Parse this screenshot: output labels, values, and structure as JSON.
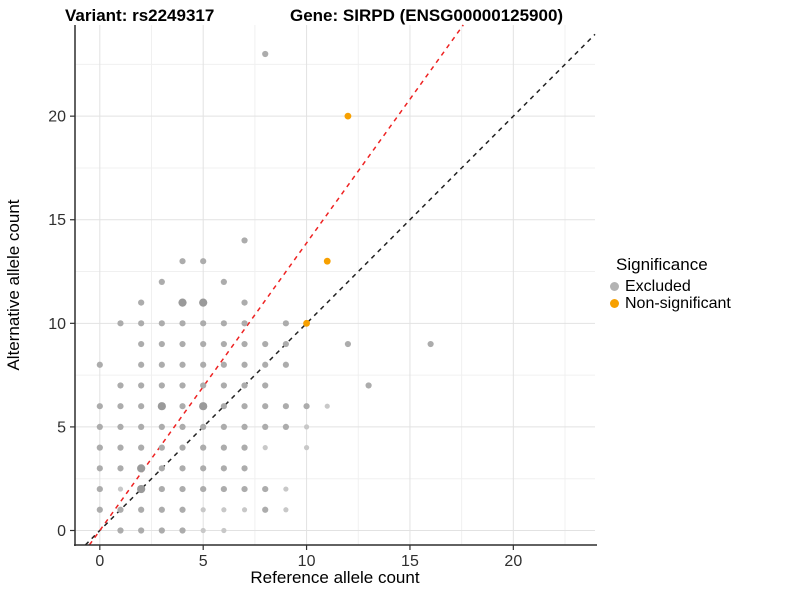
{
  "titles": {
    "left": "Variant: rs2249317",
    "right": "Gene: SIRPD (ENSG00000125900)"
  },
  "legend": {
    "title": "Significance",
    "items": [
      {
        "label": "Excluded",
        "color": "#B3B3B3"
      },
      {
        "label": "Non-significant",
        "color": "#F7A000"
      }
    ]
  },
  "chart_data": {
    "type": "scatter",
    "title_left": "Variant: rs2249317",
    "title_right": "Gene: SIRPD (ENSG00000125900)",
    "xlabel": "Reference allele count",
    "ylabel": "Alternative allele count",
    "xlim": [
      -1.2,
      23.95
    ],
    "ylim": [
      -0.7,
      24.4
    ],
    "x_major_ticks": [
      0,
      5,
      10,
      15,
      20
    ],
    "y_major_ticks": [
      0,
      5,
      10,
      15,
      20
    ],
    "x_minor_gridlines": [
      2.5,
      7.5,
      12.5,
      17.5,
      22.5
    ],
    "y_minor_gridlines": [
      2.5,
      7.5,
      12.5,
      17.5,
      22.5
    ],
    "grid": true,
    "legend_position": "right",
    "point_styles": {
      "0": {
        "r": 2.6,
        "color": "#C8C8C8"
      },
      "1": {
        "r": 3.1,
        "color": "#ACACAC"
      },
      "2": {
        "r": 4.1,
        "color": "#9A9A9A"
      }
    },
    "series": [
      {
        "name": "Excluded",
        "color": "#ACACAC",
        "points": [
          [
            1,
            0,
            1
          ],
          [
            2,
            0,
            1
          ],
          [
            3,
            0,
            1
          ],
          [
            4,
            0,
            1
          ],
          [
            5,
            0,
            0
          ],
          [
            6,
            0,
            0
          ],
          [
            0,
            1,
            1
          ],
          [
            1,
            1,
            1
          ],
          [
            2,
            1,
            1
          ],
          [
            3,
            1,
            1
          ],
          [
            4,
            1,
            1
          ],
          [
            5,
            1,
            0
          ],
          [
            6,
            1,
            0
          ],
          [
            7,
            1,
            0
          ],
          [
            8,
            1,
            1
          ],
          [
            9,
            1,
            0
          ],
          [
            0,
            2,
            1
          ],
          [
            1,
            2,
            0
          ],
          [
            2,
            2,
            2
          ],
          [
            3,
            2,
            1
          ],
          [
            4,
            2,
            1
          ],
          [
            5,
            2,
            1
          ],
          [
            6,
            2,
            1
          ],
          [
            7,
            2,
            1
          ],
          [
            8,
            2,
            1
          ],
          [
            9,
            2,
            0
          ],
          [
            0,
            3,
            1
          ],
          [
            1,
            3,
            1
          ],
          [
            2,
            3,
            2
          ],
          [
            3,
            3,
            1
          ],
          [
            4,
            3,
            1
          ],
          [
            5,
            3,
            1
          ],
          [
            6,
            3,
            1
          ],
          [
            7,
            3,
            1
          ],
          [
            0,
            4,
            1
          ],
          [
            1,
            4,
            1
          ],
          [
            2,
            4,
            1
          ],
          [
            3,
            4,
            1
          ],
          [
            4,
            4,
            1
          ],
          [
            5,
            4,
            1
          ],
          [
            6,
            4,
            1
          ],
          [
            7,
            4,
            1
          ],
          [
            8,
            4,
            0
          ],
          [
            10,
            4,
            0
          ],
          [
            0,
            5,
            1
          ],
          [
            1,
            5,
            1
          ],
          [
            2,
            5,
            1
          ],
          [
            3,
            5,
            1
          ],
          [
            4,
            5,
            1
          ],
          [
            5,
            5,
            1
          ],
          [
            6,
            5,
            1
          ],
          [
            7,
            5,
            1
          ],
          [
            8,
            5,
            1
          ],
          [
            9,
            5,
            1
          ],
          [
            10,
            5,
            0
          ],
          [
            0,
            6,
            1
          ],
          [
            1,
            6,
            1
          ],
          [
            2,
            6,
            1
          ],
          [
            3,
            6,
            2
          ],
          [
            4,
            6,
            1
          ],
          [
            5,
            6,
            2
          ],
          [
            6,
            6,
            1
          ],
          [
            7,
            6,
            1
          ],
          [
            8,
            6,
            1
          ],
          [
            9,
            6,
            1
          ],
          [
            10,
            6,
            1
          ],
          [
            11,
            6,
            0
          ],
          [
            1,
            7,
            1
          ],
          [
            2,
            7,
            1
          ],
          [
            3,
            7,
            1
          ],
          [
            4,
            7,
            1
          ],
          [
            5,
            7,
            1
          ],
          [
            6,
            7,
            1
          ],
          [
            7,
            7,
            1
          ],
          [
            8,
            7,
            1
          ],
          [
            13,
            7,
            1
          ],
          [
            0,
            8,
            1
          ],
          [
            2,
            8,
            1
          ],
          [
            3,
            8,
            1
          ],
          [
            4,
            8,
            1
          ],
          [
            5,
            8,
            1
          ],
          [
            6,
            8,
            1
          ],
          [
            7,
            8,
            1
          ],
          [
            8,
            8,
            1
          ],
          [
            9,
            8,
            1
          ],
          [
            2,
            9,
            1
          ],
          [
            3,
            9,
            1
          ],
          [
            4,
            9,
            1
          ],
          [
            5,
            9,
            1
          ],
          [
            6,
            9,
            1
          ],
          [
            7,
            9,
            1
          ],
          [
            8,
            9,
            1
          ],
          [
            9,
            9,
            1
          ],
          [
            12,
            9,
            1
          ],
          [
            16,
            9,
            1
          ],
          [
            1,
            10,
            1
          ],
          [
            2,
            10,
            1
          ],
          [
            3,
            10,
            1
          ],
          [
            4,
            10,
            1
          ],
          [
            5,
            10,
            1
          ],
          [
            6,
            10,
            1
          ],
          [
            7,
            10,
            1
          ],
          [
            9,
            10,
            1
          ],
          [
            2,
            11,
            1
          ],
          [
            4,
            11,
            2
          ],
          [
            5,
            11,
            2
          ],
          [
            7,
            11,
            1
          ],
          [
            3,
            12,
            1
          ],
          [
            6,
            12,
            1
          ],
          [
            4,
            13,
            1
          ],
          [
            5,
            13,
            1
          ],
          [
            7,
            14,
            1
          ],
          [
            8,
            23,
            1
          ]
        ]
      },
      {
        "name": "Non-significant",
        "color": "#F7A000",
        "r": 3.4,
        "points": [
          [
            10,
            10
          ],
          [
            11,
            13
          ],
          [
            12,
            20
          ]
        ]
      }
    ],
    "lines": [
      {
        "name": "identity-line",
        "slope": 1.0,
        "intercept": 0,
        "color": "#222222",
        "dash": "4.5 4.5"
      },
      {
        "name": "ratio-line",
        "slope": 1.388,
        "intercept": 0,
        "color": "#EE2222",
        "dash": "4.5 4.5"
      }
    ],
    "colors": {
      "grid_major": "#E2E2E2",
      "grid_minor": "#F0F0F0",
      "axis_line": "#2F2F2F",
      "tick_label": "#303030"
    }
  }
}
